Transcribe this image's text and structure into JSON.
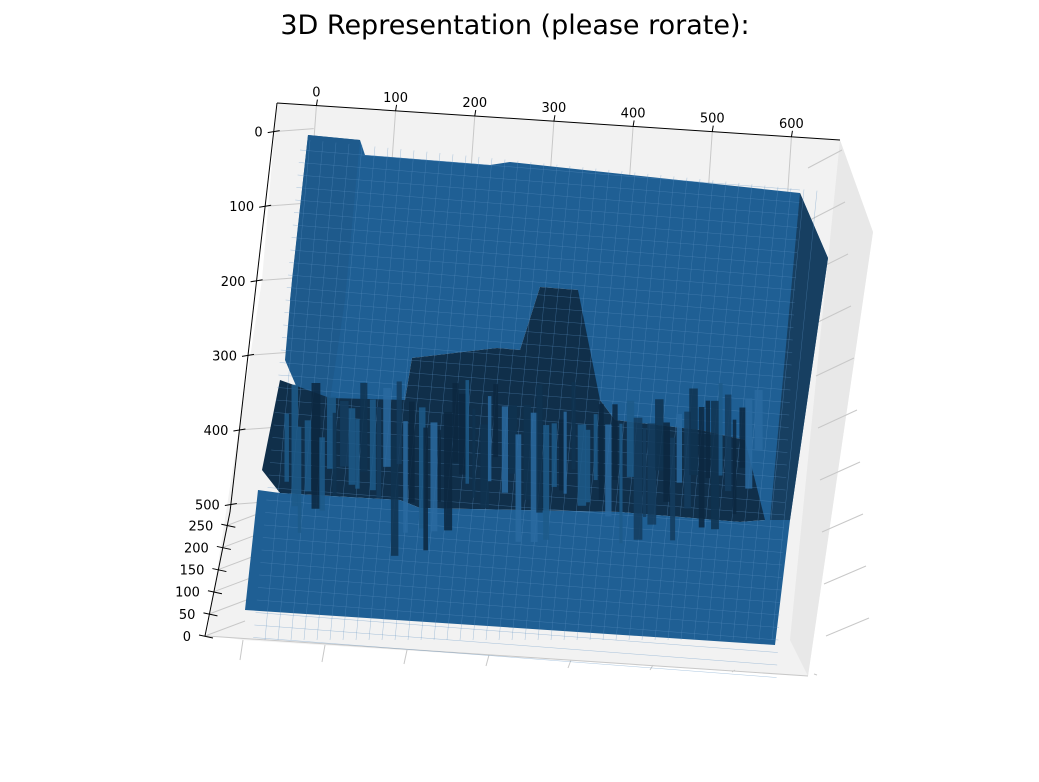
{
  "title": "3D Representation (please rorate):",
  "chart_data": {
    "type": "surface",
    "title": "3D Representation (please rorate):",
    "x_ticks": [
      "0",
      "100",
      "200",
      "300",
      "400",
      "500",
      "600"
    ],
    "y_ticks": [
      "0",
      "100",
      "200",
      "300",
      "400",
      "500"
    ],
    "z_ticks": [
      "0",
      "50",
      "100",
      "150",
      "200",
      "250"
    ],
    "x_range": [
      0,
      640
    ],
    "y_range": [
      0,
      510
    ],
    "z_range": [
      0,
      280
    ],
    "grid": true,
    "surface_color": "#1f5f94",
    "pane_color": "#f2f2f2"
  }
}
